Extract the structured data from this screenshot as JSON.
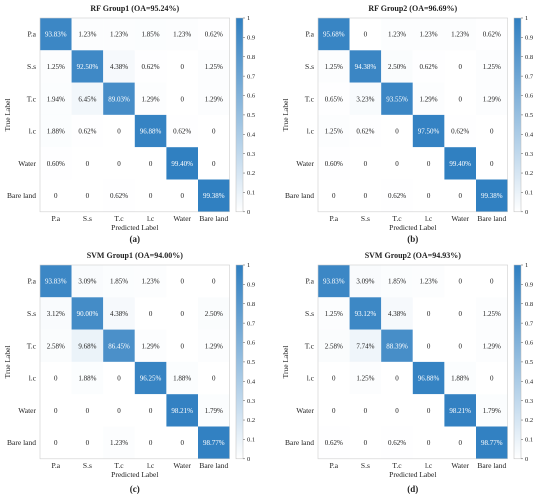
{
  "chart_data": [
    {
      "type": "heatmap",
      "panel": "(a)",
      "title": "RF Group1 (OA=95.24%)",
      "xlabel": "Predicted Label",
      "ylabel": "True Label",
      "x_categories": [
        "P.a",
        "S.s",
        "T.c",
        "l.c",
        "Water",
        "Bare land"
      ],
      "y_categories": [
        "P.a",
        "S.s",
        "T.c",
        "l.c",
        "Water",
        "Bare land"
      ],
      "cells": [
        [
          "93.83%",
          "1.23%",
          "1.23%",
          "1.85%",
          "1.23%",
          "0.62%"
        ],
        [
          "1.25%",
          "92.50%",
          "4.38%",
          "0.62%",
          "0",
          "1.25%"
        ],
        [
          "1.94%",
          "6.45%",
          "89.03%",
          "1.29%",
          "0",
          "1.29%"
        ],
        [
          "1.88%",
          "0.62%",
          "0",
          "96.88%",
          "0.62%",
          "0"
        ],
        [
          "0.60%",
          "0",
          "0",
          "0",
          "99.40%",
          "0"
        ],
        [
          "0",
          "0",
          "0.62%",
          "0",
          "0",
          "99.38%"
        ]
      ],
      "colorbar_ticks": [
        "0",
        "0.1",
        "0.2",
        "0.3",
        "0.4",
        "0.5",
        "0.6",
        "0.7",
        "0.8",
        "0.9",
        "1"
      ],
      "color_range": [
        0,
        1
      ],
      "colors": {
        "low": "#ffffff",
        "high": "#2f7fc1"
      }
    },
    {
      "type": "heatmap",
      "panel": "(b)",
      "title": "RF Group2 (OA=96.69%)",
      "xlabel": "Predicted Label",
      "ylabel": "True Label",
      "x_categories": [
        "P.a",
        "S.s",
        "T.c",
        "l.c",
        "Water",
        "Bare land"
      ],
      "y_categories": [
        "P.a",
        "S.s",
        "T.c",
        "l.c",
        "Water",
        "Bare land"
      ],
      "cells": [
        [
          "95.68%",
          "0",
          "1.23%",
          "1.23%",
          "1.23%",
          "0.62%"
        ],
        [
          "1.25%",
          "94.38%",
          "2.50%",
          "0.62%",
          "0",
          "1.25%"
        ],
        [
          "0.65%",
          "3.23%",
          "93.55%",
          "1.29%",
          "0",
          "1.29%"
        ],
        [
          "1.25%",
          "0.62%",
          "0",
          "97.50%",
          "0.62%",
          "0"
        ],
        [
          "0.60%",
          "0",
          "0",
          "0",
          "99.40%",
          "0"
        ],
        [
          "0",
          "0",
          "0.62%",
          "0",
          "0",
          "99.38%"
        ]
      ],
      "colorbar_ticks": [
        "0",
        "0.1",
        "0.2",
        "0.3",
        "0.4",
        "0.5",
        "0.6",
        "0.7",
        "0.8",
        "0.9",
        "1"
      ],
      "color_range": [
        0,
        1
      ],
      "colors": {
        "low": "#ffffff",
        "high": "#2f7fc1"
      }
    },
    {
      "type": "heatmap",
      "panel": "(c)",
      "title": "SVM Group1 (OA=94.00%)",
      "xlabel": "Predicted Label",
      "ylabel": "True Label",
      "x_categories": [
        "P.a",
        "S.s",
        "T.c",
        "l.c",
        "Water",
        "Bare land"
      ],
      "y_categories": [
        "P.a",
        "S.s",
        "T.c",
        "l.c",
        "Water",
        "Bare land"
      ],
      "cells": [
        [
          "93.83%",
          "3.09%",
          "1.85%",
          "1.23%",
          "0",
          "0"
        ],
        [
          "3.12%",
          "90.00%",
          "4.38%",
          "0",
          "0",
          "2.50%"
        ],
        [
          "2.58%",
          "9.68%",
          "86.45%",
          "1.29%",
          "0",
          "1.29%"
        ],
        [
          "0",
          "1.88%",
          "0",
          "96.25%",
          "1.88%",
          "0"
        ],
        [
          "0",
          "0",
          "0",
          "0",
          "98.21%",
          "1.79%"
        ],
        [
          "0",
          "0",
          "1.23%",
          "0",
          "0",
          "98.77%"
        ]
      ],
      "colorbar_ticks": [
        "0",
        "0.1",
        "0.2",
        "0.3",
        "0.4",
        "0.5",
        "0.6",
        "0.7",
        "0.8",
        "0.9",
        "1"
      ],
      "color_range": [
        0,
        1
      ],
      "colors": {
        "low": "#ffffff",
        "high": "#2f7fc1"
      }
    },
    {
      "type": "heatmap",
      "panel": "(d)",
      "title": "SVM Group2 (OA=94.93%)",
      "xlabel": "Predicted Label",
      "ylabel": "True Label",
      "x_categories": [
        "P.a",
        "S.s",
        "T.c",
        "l.c",
        "Water",
        "Bare land"
      ],
      "y_categories": [
        "P.a",
        "S.s",
        "T.c",
        "l.c",
        "Water",
        "Bare land"
      ],
      "cells": [
        [
          "93.83%",
          "3.09%",
          "1.85%",
          "1.23%",
          "0",
          "0"
        ],
        [
          "1.25%",
          "93.12%",
          "4.38%",
          "0",
          "0",
          "1.25%"
        ],
        [
          "2.58%",
          "7.74%",
          "88.39%",
          "0",
          "0",
          "1.29%"
        ],
        [
          "0",
          "1.25%",
          "0",
          "96.88%",
          "1.88%",
          "0"
        ],
        [
          "0",
          "0",
          "0",
          "0",
          "98.21%",
          "1.79%"
        ],
        [
          "0.62%",
          "0",
          "0.62%",
          "0",
          "0",
          "98.77%"
        ]
      ],
      "colorbar_ticks": [
        "0",
        "0.1",
        "0.2",
        "0.3",
        "0.4",
        "0.5",
        "0.6",
        "0.7",
        "0.8",
        "0.9",
        "1"
      ],
      "color_range": [
        0,
        1
      ],
      "colors": {
        "low": "#ffffff",
        "high": "#2f7fc1"
      }
    }
  ]
}
